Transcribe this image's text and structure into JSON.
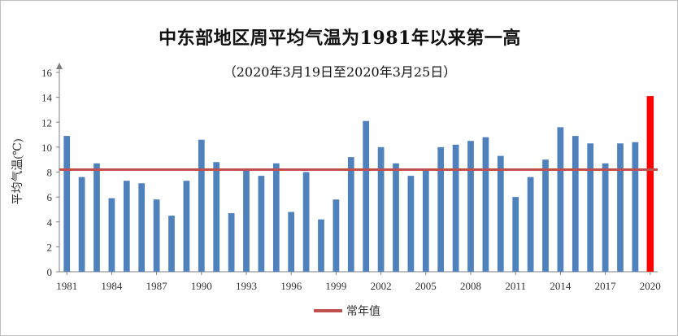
{
  "chart_data": {
    "type": "bar",
    "title": "中东部地区周平均气温为1981年以来第一高",
    "subtitle": "（2020年3月19日至2020年3月25日）",
    "ylabel": "平均气温(℃)",
    "xlabel": "",
    "ylim": [
      0,
      16
    ],
    "yticks": [
      0,
      2,
      4,
      6,
      8,
      10,
      12,
      14,
      16
    ],
    "xticks": [
      "1981",
      "1984",
      "1987",
      "1990",
      "1993",
      "1996",
      "1999",
      "2002",
      "2005",
      "2008",
      "2011",
      "2014",
      "2017",
      "2020"
    ],
    "categories": [
      "1981",
      "1982",
      "1983",
      "1984",
      "1985",
      "1986",
      "1987",
      "1988",
      "1989",
      "1990",
      "1991",
      "1992",
      "1993",
      "1994",
      "1995",
      "1996",
      "1997",
      "1998",
      "1999",
      "2000",
      "2001",
      "2002",
      "2003",
      "2004",
      "2005",
      "2006",
      "2007",
      "2008",
      "2009",
      "2010",
      "2011",
      "2012",
      "2013",
      "2014",
      "2015",
      "2016",
      "2017",
      "2018",
      "2019",
      "2020"
    ],
    "values": [
      10.9,
      7.6,
      8.7,
      5.9,
      7.3,
      7.1,
      5.8,
      4.5,
      7.3,
      10.6,
      8.8,
      4.7,
      8.3,
      7.7,
      8.7,
      4.8,
      8.0,
      4.2,
      5.8,
      9.2,
      12.1,
      10.0,
      8.7,
      7.7,
      8.1,
      10.0,
      10.2,
      10.5,
      10.8,
      9.3,
      6.0,
      7.6,
      9.0,
      11.6,
      10.9,
      10.3,
      8.7,
      10.3,
      10.4,
      14.1
    ],
    "highlight": "2020",
    "bar_color": "#4f81bd",
    "highlight_color": "#ff0000",
    "reference_line": {
      "name": "常年值",
      "value": 8.2,
      "color": "#c0504d"
    },
    "legend_position": "bottom",
    "grid": false
  }
}
